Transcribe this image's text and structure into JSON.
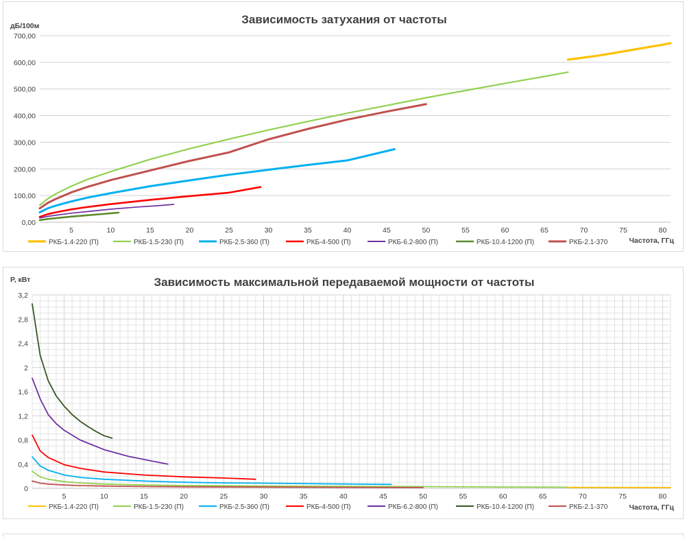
{
  "chart_data": [
    {
      "type": "line",
      "title": "Зависимость затухания  от частоты",
      "ylabel": "дБ/100м",
      "xlabel": "Частота,  ГГц",
      "xlim": [
        1,
        81
      ],
      "ylim": [
        0,
        700
      ],
      "x_ticks": [
        "5",
        "10",
        "15",
        "20",
        "25",
        "30",
        "35",
        "40",
        "45",
        "50",
        "55",
        "60",
        "65",
        "70",
        "75",
        "80"
      ],
      "y_ticks": [
        "0,00",
        "100,00",
        "200,00",
        "300,00",
        "400,00",
        "500,00",
        "600,00",
        "700,00"
      ],
      "grid": true,
      "legend_position": "bottom",
      "series": [
        {
          "name": "РКБ-1.4-220 (П)",
          "color": "#ffc000",
          "width": 3.2,
          "x": [
            68,
            70,
            72,
            74,
            76,
            78,
            80,
            81
          ],
          "y": [
            610,
            618,
            626,
            636,
            646,
            656,
            666,
            672
          ]
        },
        {
          "name": "РКБ-1.5-230 (П)",
          "color": "#92d050",
          "width": 2.2,
          "x": [
            1,
            2,
            3,
            5,
            7,
            10,
            15,
            20,
            25,
            30,
            35,
            40,
            45,
            50,
            55,
            60,
            65,
            68
          ],
          "y": [
            64,
            88,
            106,
            135,
            160,
            190,
            236,
            276,
            312,
            346,
            378,
            409,
            438,
            467,
            494,
            521,
            547,
            563
          ]
        },
        {
          "name": "РКБ-2.5-360 (П)",
          "color": "#00b0f0",
          "width": 3,
          "x": [
            1,
            2,
            3,
            5,
            7,
            10,
            15,
            20,
            25,
            30,
            35,
            40,
            46
          ],
          "y": [
            37,
            52,
            62,
            78,
            92,
            109,
            135,
            157,
            178,
            197,
            215,
            232,
            274
          ]
        },
        {
          "name": "РКБ-4-500 (П)",
          "color": "#ff0000",
          "width": 2.6,
          "x": [
            1,
            2,
            3,
            5,
            7,
            10,
            15,
            20,
            25,
            29
          ],
          "y": [
            20,
            30,
            37,
            48,
            57,
            68,
            84,
            98,
            111,
            132
          ]
        },
        {
          "name": "РКБ-6.2-800 (П)",
          "color": "#7030a0",
          "width": 1.7,
          "x": [
            1,
            2,
            3,
            5,
            7,
            10,
            13,
            16,
            18
          ],
          "y": [
            16,
            22,
            26,
            34,
            40,
            49,
            56,
            62,
            67
          ]
        },
        {
          "name": "РКБ-10.4-1200 (П)",
          "color": "#5a8a2a",
          "width": 2.6,
          "x": [
            1,
            2,
            3,
            5,
            7,
            9,
            11
          ],
          "y": [
            8,
            12,
            15,
            21,
            26,
            31,
            36
          ]
        },
        {
          "name": "РКБ-2.1-370",
          "color": "#c0504d",
          "width": 3,
          "x": [
            1,
            2,
            3,
            5,
            7,
            10,
            15,
            20,
            25,
            30,
            35,
            40,
            45,
            50
          ],
          "y": [
            52,
            72,
            87,
            112,
            132,
            158,
            194,
            230,
            262,
            311,
            350,
            385,
            415,
            443
          ]
        }
      ]
    },
    {
      "type": "line",
      "title": "Зависимость максимальной  передаваемой  мощности  от частоты",
      "ylabel": "P, кВт",
      "xlabel": "Частота,  ГГц",
      "xlim": [
        1,
        81
      ],
      "ylim": [
        0,
        3.2
      ],
      "x_ticks": [
        "5",
        "10",
        "15",
        "20",
        "25",
        "30",
        "35",
        "40",
        "45",
        "50",
        "55",
        "60",
        "65",
        "70",
        "75",
        "80"
      ],
      "y_ticks": [
        "0",
        "0,4",
        "0,8",
        "1,2",
        "1,6",
        "2",
        "2,4",
        "2,8",
        "3,2"
      ],
      "grid": true,
      "legend_position": "bottom",
      "series": [
        {
          "name": "РКБ-1.4-220 (П)",
          "color": "#ffc000",
          "width": 1.8,
          "x": [
            68,
            75,
            81
          ],
          "y": [
            0.015,
            0.014,
            0.012
          ]
        },
        {
          "name": "РКБ-1.5-230 (П)",
          "color": "#92d050",
          "width": 1.8,
          "x": [
            1,
            2,
            3,
            5,
            7,
            10,
            15,
            20,
            30,
            40,
            50,
            60,
            68
          ],
          "y": [
            0.28,
            0.19,
            0.15,
            0.11,
            0.09,
            0.07,
            0.055,
            0.047,
            0.038,
            0.033,
            0.028,
            0.022,
            0.018
          ]
        },
        {
          "name": "РКБ-2.5-360 (П)",
          "color": "#00b0f0",
          "width": 1.8,
          "x": [
            1,
            2,
            3,
            5,
            7,
            10,
            15,
            20,
            25,
            30,
            35,
            40,
            46
          ],
          "y": [
            0.52,
            0.37,
            0.3,
            0.22,
            0.18,
            0.15,
            0.12,
            0.1,
            0.09,
            0.085,
            0.078,
            0.072,
            0.065
          ]
        },
        {
          "name": "РКБ-4-500 (П)",
          "color": "#ff0000",
          "width": 1.8,
          "x": [
            1,
            2,
            3,
            5,
            7,
            10,
            15,
            20,
            25,
            29
          ],
          "y": [
            0.88,
            0.62,
            0.51,
            0.39,
            0.33,
            0.27,
            0.22,
            0.19,
            0.17,
            0.15
          ]
        },
        {
          "name": "РКБ-6.2-800 (П)",
          "color": "#7030a0",
          "width": 1.8,
          "x": [
            1,
            2,
            3,
            4,
            5,
            7,
            10,
            13,
            16,
            18
          ],
          "y": [
            1.82,
            1.48,
            1.22,
            1.07,
            0.96,
            0.8,
            0.64,
            0.53,
            0.45,
            0.4
          ]
        },
        {
          "name": "РКБ-10.4-1200 (П)",
          "color": "#375623",
          "width": 1.8,
          "x": [
            1,
            2,
            3,
            4,
            5,
            6,
            7,
            8,
            9,
            10,
            11
          ],
          "y": [
            3.05,
            2.2,
            1.78,
            1.53,
            1.36,
            1.22,
            1.11,
            1.02,
            0.94,
            0.87,
            0.83
          ]
        },
        {
          "name": "РКБ-2.1-370",
          "color": "#c0504d",
          "width": 1.8,
          "x": [
            1,
            2,
            3,
            5,
            7,
            10,
            15,
            20,
            30,
            40,
            50
          ],
          "y": [
            0.12,
            0.085,
            0.07,
            0.055,
            0.045,
            0.038,
            0.03,
            0.025,
            0.02,
            0.016,
            0.013
          ]
        }
      ]
    }
  ]
}
